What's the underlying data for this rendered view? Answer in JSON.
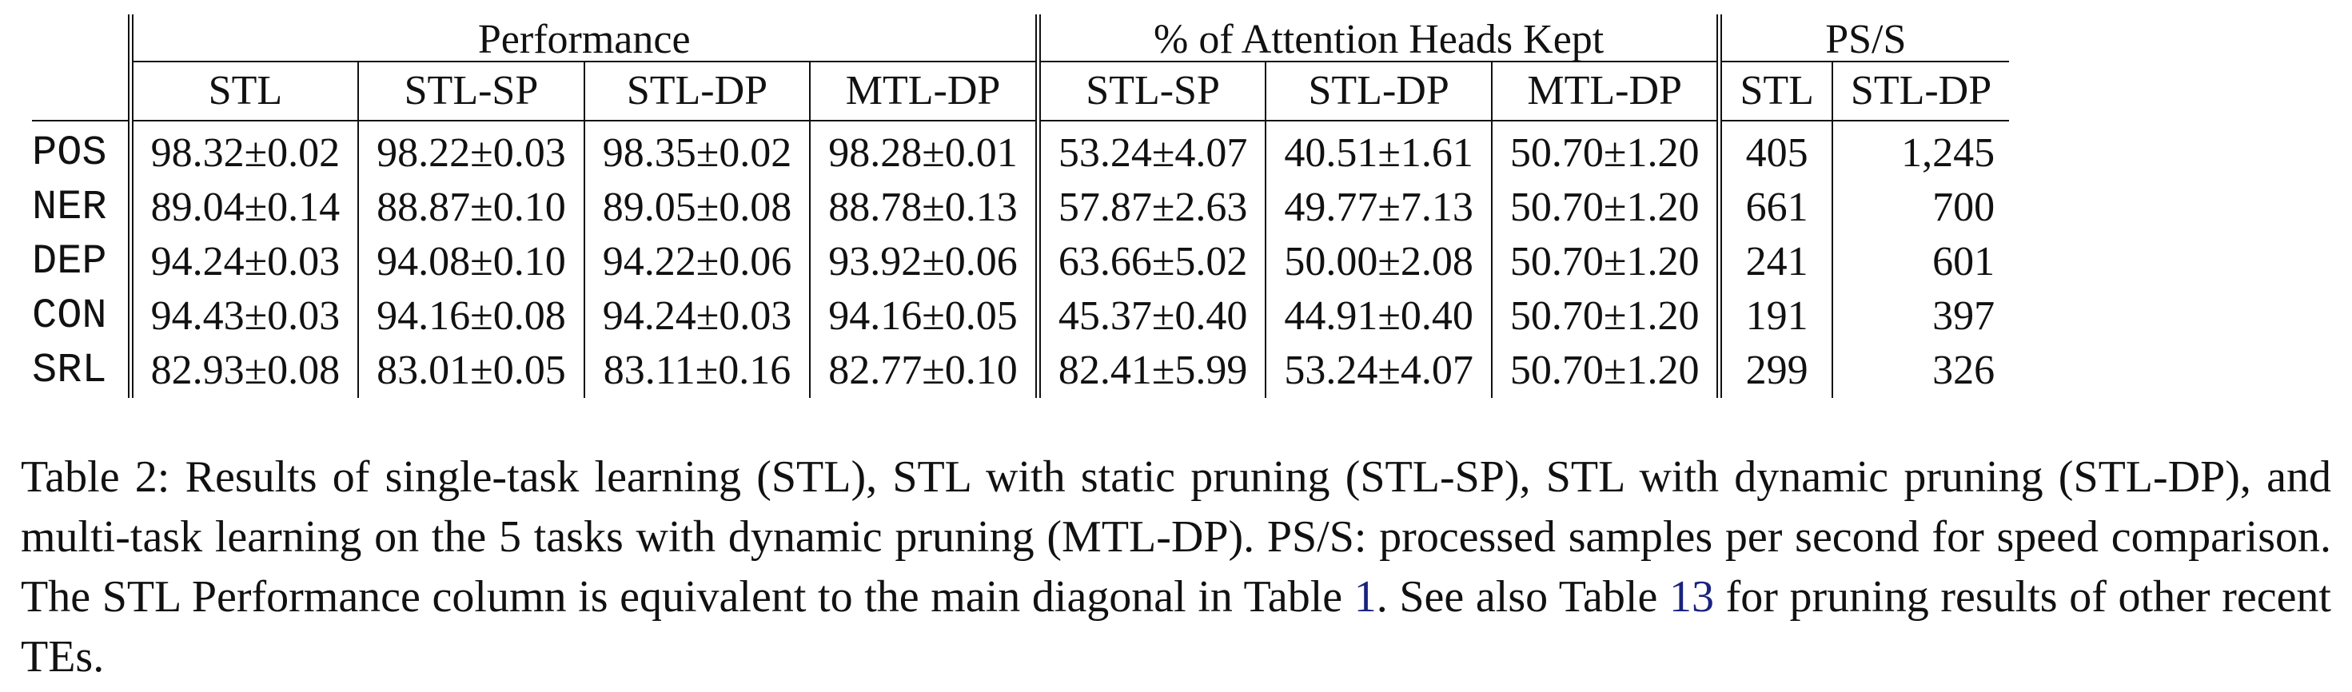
{
  "table": {
    "group_headers": {
      "performance": "Performance",
      "heads_kept": "% of Attention Heads Kept",
      "pss": "PS/S"
    },
    "sub_headers": {
      "perf": [
        "STL",
        "STL-SP",
        "STL-DP",
        "MTL-DP"
      ],
      "heads": [
        "STL-SP",
        "STL-DP",
        "MTL-DP"
      ],
      "pss": [
        "STL",
        "STL-DP"
      ]
    },
    "rows": [
      {
        "task": "POS",
        "perf": [
          "98.32±0.02",
          "98.22±0.03",
          "98.35±0.02",
          "98.28±0.01"
        ],
        "heads": [
          "53.24±4.07",
          "40.51±1.61",
          "50.70±1.20"
        ],
        "pss": [
          "405",
          "1,245"
        ]
      },
      {
        "task": "NER",
        "perf": [
          "89.04±0.14",
          "88.87±0.10",
          "89.05±0.08",
          "88.78±0.13"
        ],
        "heads": [
          "57.87±2.63",
          "49.77±7.13",
          "50.70±1.20"
        ],
        "pss": [
          "661",
          "700"
        ]
      },
      {
        "task": "DEP",
        "perf": [
          "94.24±0.03",
          "94.08±0.10",
          "94.22±0.06",
          "93.92±0.06"
        ],
        "heads": [
          "63.66±5.02",
          "50.00±2.08",
          "50.70±1.20"
        ],
        "pss": [
          "241",
          "601"
        ]
      },
      {
        "task": "CON",
        "perf": [
          "94.43±0.03",
          "94.16±0.08",
          "94.24±0.03",
          "94.16±0.05"
        ],
        "heads": [
          "45.37±0.40",
          "44.91±0.40",
          "50.70±1.20"
        ],
        "pss": [
          "191",
          "397"
        ]
      },
      {
        "task": "SRL",
        "perf": [
          "82.93±0.08",
          "83.01±0.05",
          "83.11±0.16",
          "82.77±0.10"
        ],
        "heads": [
          "82.41±5.99",
          "53.24±4.07",
          "50.70±1.20"
        ],
        "pss": [
          "299",
          "326"
        ]
      }
    ]
  },
  "caption": {
    "part1": "Table 2: Results of single-task learning (STL), STL with static pruning (STL-SP), STL with dynamic pruning (STL-DP), and multi-task learning on the 5 tasks with dynamic pruning (MTL-DP). PS/S: processed samples per second for speed comparison. The STL Performance column is equivalent to the main diagonal in Table ",
    "ref1": "1",
    "part2": ". See also Table ",
    "ref2": "13",
    "part3": " for pruning results of other recent TEs."
  }
}
